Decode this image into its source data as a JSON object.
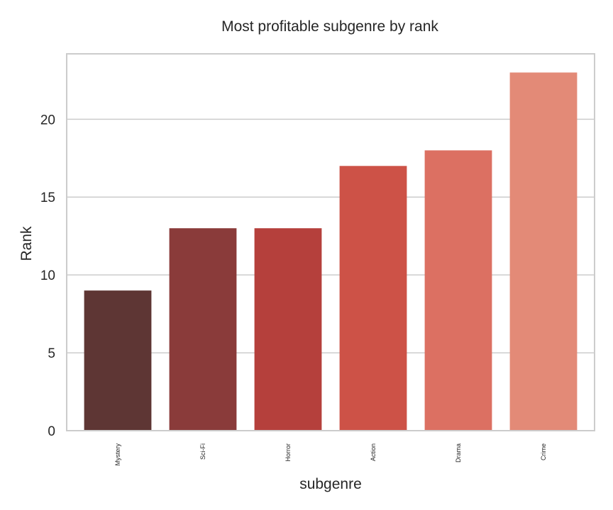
{
  "chart_data": {
    "type": "bar",
    "title": "Most profitable subgenre by rank",
    "xlabel": "subgenre",
    "ylabel": "Rank",
    "categories": [
      "Mystery",
      "Sci-Fi",
      "Horror",
      "Action",
      "Drama",
      "Crime"
    ],
    "values": [
      9,
      13,
      13,
      17,
      18,
      23
    ],
    "colors": [
      "#5e3634",
      "#8a3b3a",
      "#b5403c",
      "#cd5247",
      "#dc7062",
      "#e38a77"
    ],
    "ylim": [
      0,
      24.2
    ],
    "yticks": [
      0,
      5,
      10,
      15,
      20
    ],
    "grid": "horizontal",
    "frame_color": "#cccccc",
    "grid_color": "#cccccc"
  }
}
